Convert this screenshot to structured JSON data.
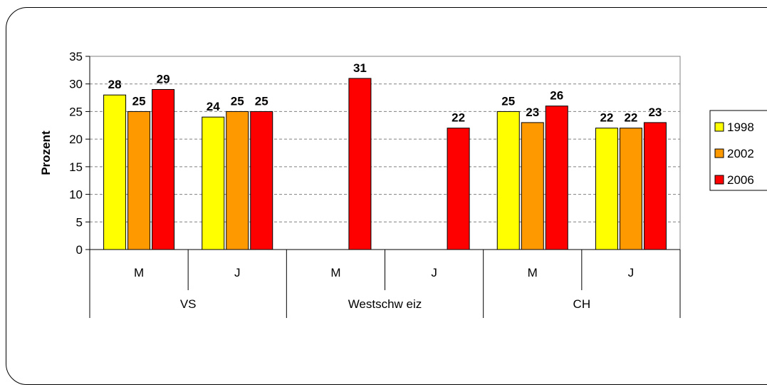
{
  "chart_data": {
    "type": "bar",
    "ylabel": "Prozent",
    "ylim": [
      0,
      35
    ],
    "yticks": [
      0,
      5,
      10,
      15,
      20,
      25,
      30,
      35
    ],
    "grid": "horizontal dashed",
    "legend_position": "right",
    "groups": [
      {
        "label": "VS",
        "categories": [
          "M",
          "J"
        ]
      },
      {
        "label": "Westschw eiz",
        "categories": [
          "M",
          "J"
        ]
      },
      {
        "label": "CH",
        "categories": [
          "M",
          "J"
        ]
      }
    ],
    "series": [
      {
        "name": "1998",
        "color": "#ffff00",
        "values": [
          28,
          24,
          null,
          null,
          25,
          22
        ]
      },
      {
        "name": "2002",
        "color": "#ff9900",
        "values": [
          25,
          25,
          null,
          null,
          23,
          22
        ]
      },
      {
        "name": "2006",
        "color": "#ff0000",
        "values": [
          29,
          25,
          31,
          22,
          26,
          23
        ]
      }
    ]
  }
}
